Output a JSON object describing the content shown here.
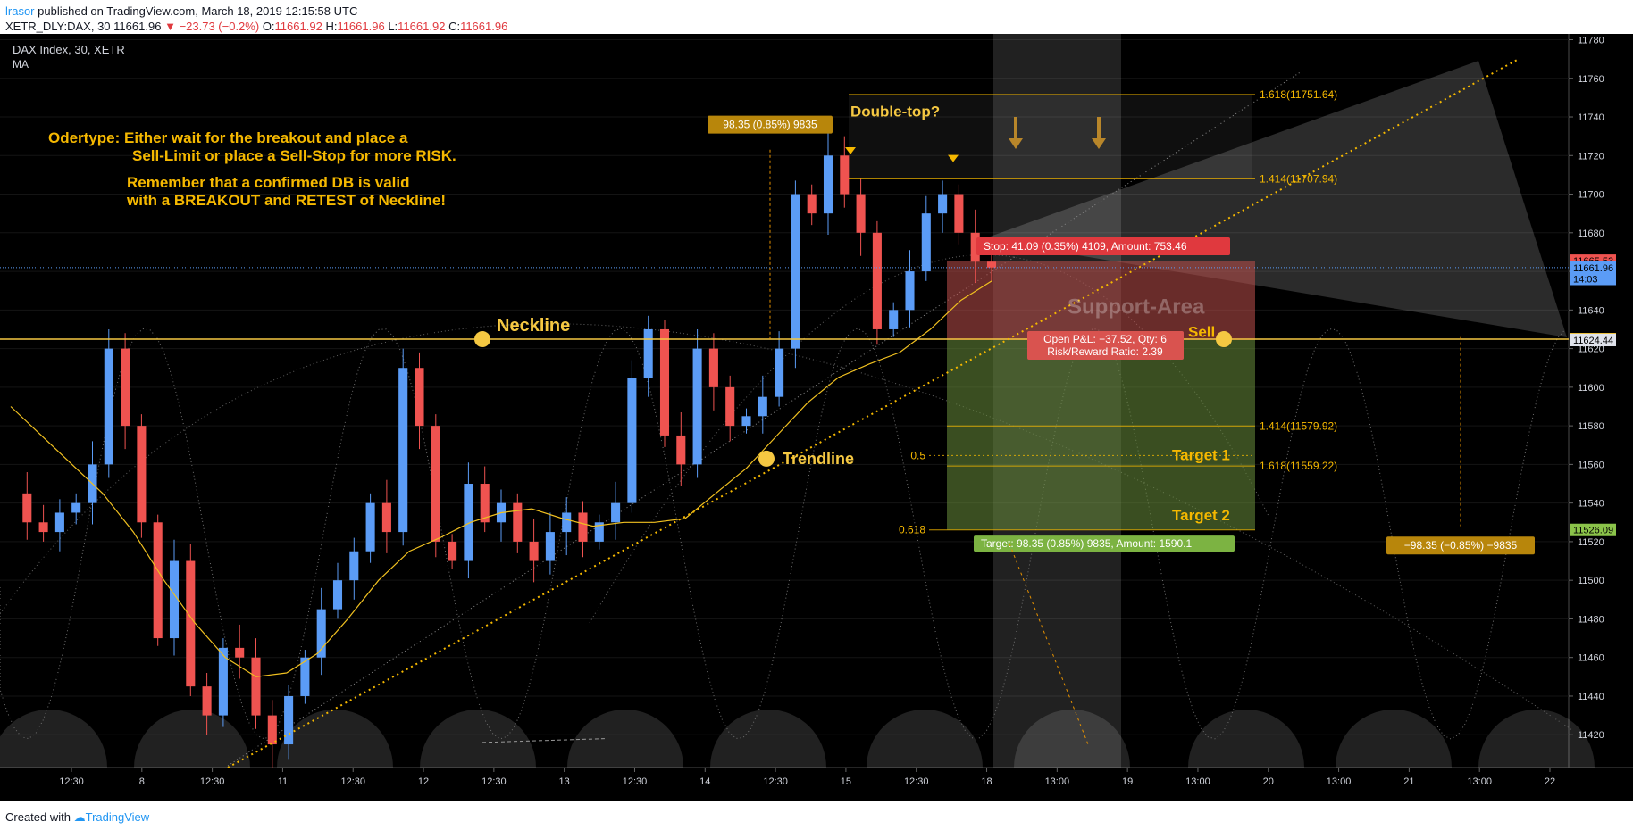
{
  "header": {
    "author": "lrasor",
    "published": "published on TradingView.com, March 18, 2019 12:15:58 UTC",
    "symbol_line": "XETR_DLY:DAX, 30",
    "price": "11661.96",
    "change": "−23.73 (−0.2%)",
    "ohlc": [
      {
        "label": "O:",
        "value": "11661.92"
      },
      {
        "label": "H:",
        "value": "11661.96"
      },
      {
        "label": "L:",
        "value": "11661.92"
      },
      {
        "label": "C:",
        "value": "11661.96"
      }
    ]
  },
  "legend": {
    "title": "DAX Index, 30, XETR",
    "indicator": "MA"
  },
  "footer": {
    "created_with": "Created with",
    "brand": "TradingView"
  },
  "colors": {
    "background": "#000000",
    "up": "#5b9cf6",
    "down": "#ef5350",
    "ma": "#f0c020",
    "annotation": "#f5b800",
    "neckline": "#f5c842",
    "stop_zone": "#c0504d",
    "target_zone": "#6a8e3c"
  },
  "chart_data": {
    "type": "candlestick",
    "symbol": "DAX Index, 30, XETR",
    "ylim": [
      11403,
      11783
    ],
    "y_ticks": [
      11420,
      11440,
      11460,
      11480,
      11500,
      11520,
      11540,
      11560,
      11580,
      11600,
      11620,
      11640,
      11660,
      11680,
      11700,
      11720,
      11740,
      11760,
      11780
    ],
    "x_ticks": [
      "12:30",
      "8",
      "12:30",
      "11",
      "12:30",
      "12",
      "12:30",
      "13",
      "12:30",
      "14",
      "12:30",
      "15",
      "12:30",
      "18",
      "13:00",
      "19",
      "13:00",
      "20",
      "13:00",
      "21",
      "13:00",
      "22"
    ],
    "close_path": [
      11545,
      11530,
      11525,
      11535,
      11540,
      11560,
      11620,
      11580,
      11530,
      11470,
      11510,
      11445,
      11430,
      11465,
      11460,
      11430,
      11415,
      11440,
      11460,
      11485,
      11500,
      11515,
      11540,
      11525,
      11610,
      11580,
      11520,
      11510,
      11550,
      11530,
      11540,
      11520,
      11510,
      11525,
      11535,
      11520,
      11530,
      11540,
      11605,
      11630,
      11575,
      11560,
      11620,
      11600,
      11580,
      11585,
      11595,
      11620,
      11700,
      11690,
      11720,
      11700,
      11680,
      11630,
      11640,
      11660,
      11690,
      11700,
      11680,
      11665,
      11662
    ],
    "moving_average": [
      11590,
      11575,
      11560,
      11545,
      11525,
      11500,
      11478,
      11460,
      11450,
      11452,
      11462,
      11480,
      11500,
      11515,
      11522,
      11530,
      11535,
      11537,
      11532,
      11528,
      11530,
      11530,
      11532,
      11545,
      11558,
      11575,
      11592,
      11605,
      11612,
      11618,
      11630,
      11645,
      11655
    ],
    "levels": {
      "neckline": 11624.88,
      "last_price": 11661.96,
      "stop": 11665.53,
      "entry": 11624.44,
      "target": 11526.09
    },
    "fib_levels": [
      {
        "label": "1.618(11751.64)",
        "value": 11751.64
      },
      {
        "label": "1.414(11707.94)",
        "value": 11707.94
      },
      {
        "label": "1.414(11579.92)",
        "value": 11579.92
      },
      {
        "label": "0.5",
        "value": 11564.6
      },
      {
        "label": "1.618(11559.22)",
        "value": 11559.22
      },
      {
        "label": "0.618",
        "value": 11526.09
      }
    ],
    "axis_labels": [
      {
        "text": "11665.53",
        "value": 11665.53,
        "color": "#ef5350"
      },
      {
        "text": "11661.96",
        "value": 11661.96,
        "color": "#5b9cf6"
      },
      {
        "text": "14:03",
        "value": 11656.1,
        "color": "#5b9cf6"
      },
      {
        "text": "11624.88",
        "value": 11624.88,
        "color": "#f5c842"
      },
      {
        "text": "11624.44",
        "value": 11624.44,
        "color": "#e0e3eb"
      },
      {
        "text": "11526.09",
        "value": 11526.09,
        "color": "#8bc34a"
      }
    ],
    "annotations": {
      "note1": "Odertype: Either wait for the breakout and place a",
      "note2": "Sell-Limit or place a Sell-Stop for more RISK.",
      "note3": "Remember that a confirmed DB is valid",
      "note4": "with a BREAKOUT and RETEST of Neckline!",
      "neckline": "Neckline",
      "trendline": "Trendline",
      "double_top": "Double-top?",
      "support_area": "Support-Area",
      "sell": "Sell",
      "target1": "Target 1",
      "target2": "Target 2",
      "range_up": "98.35 (0.85%) 9835",
      "range_down": "−98.35 (−0.85%) −9835",
      "stop_label": "Stop: 41.09 (0.35%) 4109, Amount: 753.46",
      "pnl_label": "Open P&L: −37.52, Qty: 6",
      "rr_label": "Risk/Reward Ratio: 2.39",
      "target_label": "Target: 98.35 (0.85%) 9835, Amount: 1590.1"
    }
  }
}
